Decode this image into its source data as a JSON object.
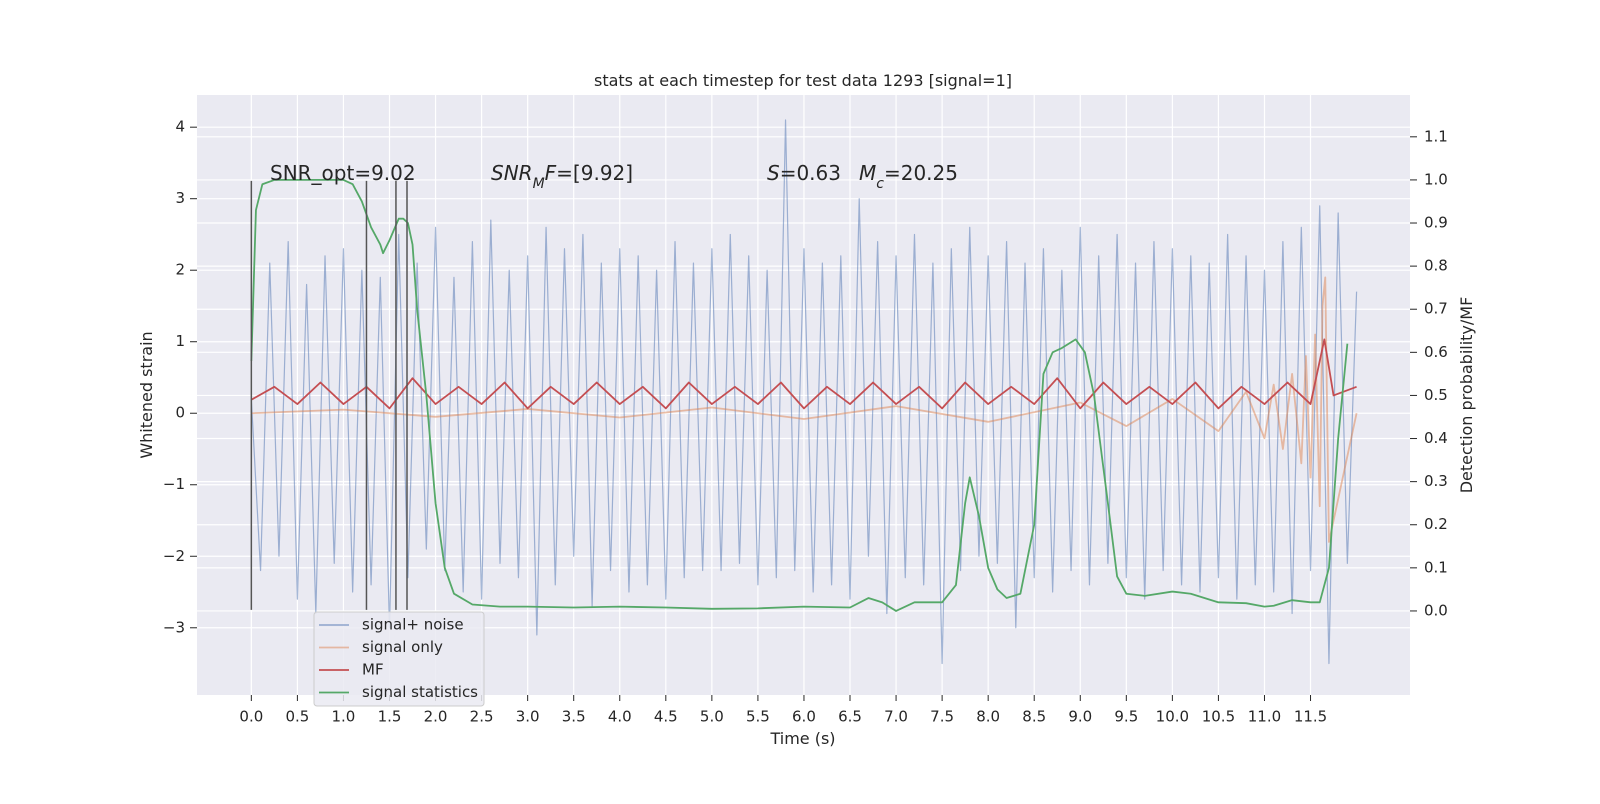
{
  "chart_data": {
    "type": "line",
    "title": "stats at each timestep for test data 1293 [signal=1]",
    "x_label": "Time (s)",
    "y_label": "Whitened strain",
    "y2_label": "Detection probability/MF",
    "xlim": [
      -0.59,
      12.58
    ],
    "ylim": [
      -3.94,
      4.45
    ],
    "y2lim": [
      -0.195,
      1.197
    ],
    "xticks": [
      {
        "value": 0,
        "label": "0.0"
      },
      0.5,
      {
        "value": 1,
        "label": "1.0"
      },
      1.5,
      {
        "value": 2,
        "label": "2.0"
      },
      2.5,
      {
        "value": 3,
        "label": "3.0"
      },
      3.5,
      {
        "value": 4,
        "label": "4.0"
      },
      4.5,
      {
        "value": 5,
        "label": "5.0"
      },
      5.5,
      {
        "value": 6,
        "label": "6.0"
      },
      6.5,
      {
        "value": 7,
        "label": "7.0"
      },
      7.5,
      {
        "value": 8,
        "label": "8.0"
      },
      8.5,
      {
        "value": 9,
        "label": "9.0"
      },
      9.5,
      {
        "value": 10,
        "label": "10.0"
      },
      10.5,
      {
        "value": 11,
        "label": "11.0"
      },
      11.5
    ],
    "yticks": [
      {
        "value": -3,
        "label": "−3"
      },
      {
        "value": -2,
        "label": "−2"
      },
      {
        "value": -1,
        "label": "−1"
      },
      0,
      1,
      2,
      3,
      4
    ],
    "y2ticks": [
      {
        "value": 0,
        "label": "0.0"
      },
      0.1,
      0.2,
      0.3,
      0.4,
      0.5,
      0.6,
      0.7,
      0.8,
      0.9,
      {
        "value": 1,
        "label": "1.0"
      },
      1.1
    ],
    "grid": true,
    "legend": "lower left",
    "vlines": [
      0,
      1.25,
      1.57,
      1.69
    ],
    "vline_range": [
      -2.75,
      3.25
    ],
    "annotations": [
      {
        "parts": [
          {
            "text": "SNR_opt=9.02"
          }
        ]
      },
      {
        "parts": [
          {
            "text": "SNR",
            "italic": true
          },
          {
            "text": "M",
            "italic": true,
            "sub": true
          },
          {
            "text": "F",
            "italic": true
          },
          {
            "text": "=[9.92]"
          }
        ]
      },
      {
        "parts": [
          {
            "text": "S",
            "italic": true
          },
          {
            "text": "=0.63"
          }
        ]
      },
      {
        "parts": [
          {
            "text": "M",
            "italic": true
          },
          {
            "text": "c",
            "italic": true,
            "sub": true
          },
          {
            "text": "=20.25"
          }
        ]
      }
    ],
    "series": [
      {
        "name": "signal+ noise",
        "color": "#4c72b0",
        "opacity": 0.5,
        "x": [
          0,
          0.1,
          0.2,
          0.3,
          0.4,
          0.5,
          0.6,
          0.7,
          0.8,
          0.9,
          1,
          1.1,
          1.2,
          1.3,
          1.4,
          1.5,
          1.6,
          1.7,
          1.8,
          1.9,
          2,
          2.1,
          2.2,
          2.3,
          2.4,
          2.5,
          2.6,
          2.7,
          2.8,
          2.9,
          3,
          3.1,
          3.2,
          3.3,
          3.4,
          3.5,
          3.6,
          3.7,
          3.8,
          3.9,
          4,
          4.1,
          4.2,
          4.3,
          4.4,
          4.5,
          4.6,
          4.7,
          4.8,
          4.9,
          5,
          5.1,
          5.2,
          5.3,
          5.4,
          5.5,
          5.6,
          5.7,
          5.8,
          5.9,
          6,
          6.1,
          6.2,
          6.3,
          6.4,
          6.5,
          6.6,
          6.7,
          6.8,
          6.9,
          7,
          7.1,
          7.2,
          7.3,
          7.4,
          7.5,
          7.6,
          7.7,
          7.8,
          7.9,
          8,
          8.1,
          8.2,
          8.3,
          8.4,
          8.5,
          8.6,
          8.7,
          8.8,
          8.9,
          9,
          9.1,
          9.2,
          9.3,
          9.4,
          9.5,
          9.6,
          9.7,
          9.8,
          9.9,
          10,
          10.1,
          10.2,
          10.3,
          10.4,
          10.5,
          10.6,
          10.7,
          10.8,
          10.9,
          11,
          11.1,
          11.2,
          11.3,
          11.4,
          11.5,
          11.6,
          11.7,
          11.8,
          11.9,
          12
        ],
        "values": [
          0.2,
          -2.2,
          2.1,
          -2.0,
          2.4,
          -2.6,
          1.8,
          -2.8,
          2.2,
          -2.1,
          2.3,
          -2.5,
          2.0,
          -2.4,
          1.9,
          -3.0,
          2.5,
          -2.3,
          2.1,
          -1.9,
          2.6,
          -2.2,
          1.9,
          -2.5,
          2.4,
          -2.6,
          2.7,
          -2.1,
          2.0,
          -2.3,
          2.2,
          -3.1,
          2.6,
          -2.4,
          2.3,
          -2.0,
          2.5,
          -2.7,
          2.1,
          -2.2,
          2.3,
          -2.5,
          2.2,
          -2.4,
          2.0,
          -2.6,
          2.4,
          -2.3,
          2.1,
          -2.2,
          2.3,
          -2.2,
          2.5,
          -2.1,
          2.2,
          -2.4,
          2.0,
          -2.3,
          4.1,
          -2.2,
          2.3,
          -2.5,
          2.1,
          -2.4,
          2.2,
          -2.6,
          3.0,
          -2.0,
          2.4,
          -2.8,
          2.2,
          -2.3,
          2.5,
          -2.4,
          2.1,
          -3.5,
          2.3,
          -2.2,
          2.6,
          -2.0,
          2.2,
          -2.1,
          2.4,
          -3.0,
          2.1,
          -2.3,
          2.3,
          -2.5,
          2.0,
          -2.2,
          2.6,
          -2.4,
          2.2,
          -2.1,
          2.5,
          -2.3,
          2.1,
          -2.6,
          2.4,
          -2.2,
          2.3,
          -2.4,
          2.2,
          -2.5,
          2.1,
          -2.3,
          2.5,
          -2.6,
          2.2,
          -2.4,
          2.0,
          -2.5,
          2.4,
          -2.8,
          2.6,
          -2.2,
          2.9,
          -3.5,
          2.8,
          -2.1,
          1.7
        ]
      },
      {
        "name": "signal only",
        "color": "#dd8452",
        "opacity": 0.5,
        "x": [
          0,
          1,
          2,
          3,
          4,
          5,
          6,
          7,
          8,
          9,
          9.5,
          10,
          10.5,
          10.8,
          11,
          11.1,
          11.2,
          11.3,
          11.4,
          11.45,
          11.5,
          11.55,
          11.6,
          11.63,
          11.66,
          11.7,
          12
        ],
        "values": [
          0.0,
          0.05,
          -0.05,
          0.06,
          -0.06,
          0.08,
          -0.08,
          0.1,
          -0.12,
          0.15,
          -0.18,
          0.2,
          -0.25,
          0.3,
          -0.35,
          0.4,
          -0.5,
          0.55,
          -0.7,
          0.8,
          -0.9,
          1.1,
          -1.3,
          1.5,
          1.9,
          -1.8,
          0.0
        ]
      },
      {
        "name": "MF",
        "color": "#c44e52",
        "opacity": 1,
        "axis": "y2",
        "x": [
          0,
          0.25,
          0.5,
          0.75,
          1,
          1.25,
          1.5,
          1.75,
          2,
          2.25,
          2.5,
          2.75,
          3,
          3.25,
          3.5,
          3.75,
          4,
          4.25,
          4.5,
          4.75,
          5,
          5.25,
          5.5,
          5.75,
          6,
          6.25,
          6.5,
          6.75,
          7,
          7.25,
          7.5,
          7.75,
          8,
          8.25,
          8.5,
          8.75,
          9,
          9.25,
          9.5,
          9.75,
          10,
          10.25,
          10.5,
          10.75,
          11,
          11.25,
          11.5,
          11.65,
          11.75,
          12
        ],
        "values": [
          0.49,
          0.52,
          0.48,
          0.53,
          0.48,
          0.52,
          0.47,
          0.54,
          0.48,
          0.52,
          0.48,
          0.53,
          0.47,
          0.52,
          0.48,
          0.53,
          0.48,
          0.52,
          0.47,
          0.53,
          0.48,
          0.52,
          0.48,
          0.53,
          0.47,
          0.52,
          0.48,
          0.53,
          0.48,
          0.52,
          0.47,
          0.53,
          0.48,
          0.52,
          0.48,
          0.54,
          0.47,
          0.53,
          0.48,
          0.52,
          0.48,
          0.53,
          0.47,
          0.52,
          0.48,
          0.53,
          0.48,
          0.63,
          0.5,
          0.52
        ]
      },
      {
        "name": "signal statistics",
        "color": "#55a868",
        "opacity": 1,
        "axis": "y2",
        "x": [
          0,
          0.05,
          0.12,
          0.25,
          1.0,
          1.1,
          1.2,
          1.3,
          1.4,
          1.43,
          1.5,
          1.6,
          1.65,
          1.7,
          1.75,
          1.8,
          1.9,
          2.0,
          2.1,
          2.2,
          2.4,
          2.7,
          3.0,
          3.5,
          4.0,
          4.5,
          5.0,
          5.5,
          6.0,
          6.5,
          6.7,
          6.85,
          7.0,
          7.2,
          7.5,
          7.65,
          7.75,
          7.8,
          7.9,
          8.0,
          8.1,
          8.2,
          8.35,
          8.5,
          8.6,
          8.7,
          8.8,
          8.95,
          9.05,
          9.15,
          9.3,
          9.4,
          9.5,
          9.7,
          10.0,
          10.2,
          10.5,
          10.8,
          11.0,
          11.1,
          11.3,
          11.5,
          11.6,
          11.7,
          11.8,
          11.9
        ],
        "values": [
          0.58,
          0.93,
          0.99,
          1.0,
          1.0,
          0.99,
          0.95,
          0.89,
          0.85,
          0.83,
          0.86,
          0.91,
          0.91,
          0.9,
          0.85,
          0.7,
          0.5,
          0.25,
          0.1,
          0.04,
          0.015,
          0.01,
          0.01,
          0.008,
          0.01,
          0.008,
          0.005,
          0.006,
          0.01,
          0.008,
          0.03,
          0.02,
          0.0,
          0.02,
          0.02,
          0.06,
          0.25,
          0.31,
          0.22,
          0.1,
          0.05,
          0.03,
          0.04,
          0.2,
          0.55,
          0.6,
          0.61,
          0.63,
          0.6,
          0.5,
          0.25,
          0.08,
          0.04,
          0.035,
          0.045,
          0.04,
          0.02,
          0.018,
          0.01,
          0.012,
          0.025,
          0.02,
          0.02,
          0.1,
          0.4,
          0.62
        ]
      }
    ]
  }
}
